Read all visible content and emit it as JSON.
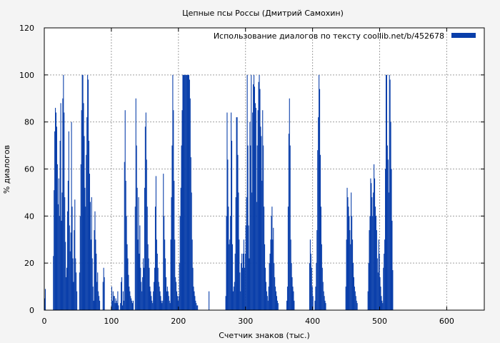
{
  "chart_data": {
    "type": "bar",
    "title": "Цепные псы Россы (Дмитрий Самохин)",
    "xlabel": "Счетчик знаков (тыс.)",
    "ylabel": "% диалогов",
    "xlim": [
      0,
      656
    ],
    "ylim": [
      0,
      120
    ],
    "xticks": [
      "0",
      "100",
      "200",
      "300",
      "400",
      "500",
      "600"
    ],
    "yticks": [
      "0",
      "20",
      "40",
      "60",
      "80",
      "100",
      "120"
    ],
    "grid": true,
    "legend_position": "top-right",
    "series": [
      {
        "name": "Использование диалогов по тексту  coollib.net/b/452678",
        "color": "#0a3faa",
        "x_start": 1,
        "x_step": 1,
        "values": [
          5,
          9,
          0,
          0,
          0,
          0,
          0,
          0,
          0,
          0,
          0,
          0,
          0,
          23,
          51,
          76,
          86,
          84,
          78,
          62,
          45,
          56,
          40,
          72,
          88,
          38,
          50,
          90,
          100,
          84,
          48,
          29,
          14,
          18,
          42,
          55,
          76,
          36,
          25,
          33,
          80,
          44,
          22,
          12,
          34,
          47,
          22,
          16,
          8,
          0,
          0,
          0,
          16,
          40,
          62,
          85,
          100,
          100,
          88,
          74,
          52,
          44,
          66,
          82,
          100,
          98,
          72,
          58,
          46,
          30,
          48,
          22,
          10,
          4,
          34,
          42,
          30,
          24,
          12,
          16,
          8,
          6,
          4,
          0,
          0,
          0,
          0,
          12,
          18,
          14,
          0,
          0,
          0,
          0,
          0,
          0,
          0,
          0,
          0,
          0,
          10,
          4,
          8,
          6,
          6,
          3,
          5,
          4,
          3,
          8,
          2,
          0,
          0,
          3,
          12,
          14,
          2,
          8,
          4,
          63,
          85,
          55,
          40,
          28,
          22,
          15,
          10,
          8,
          6,
          5,
          4,
          3,
          4,
          0,
          0,
          44,
          90,
          70,
          52,
          30,
          48,
          24,
          36,
          18,
          12,
          8,
          14,
          22,
          18,
          52,
          78,
          84,
          64,
          44,
          28,
          22,
          18,
          10,
          8,
          6,
          4,
          3,
          8,
          12,
          18,
          44,
          57,
          30,
          24,
          18,
          12,
          10,
          8,
          6,
          4,
          3,
          4,
          58,
          40,
          30,
          22,
          14,
          8,
          10,
          8,
          6,
          4,
          3,
          30,
          48,
          70,
          100,
          85,
          55,
          30,
          14,
          12,
          8,
          6,
          4,
          6,
          20,
          40,
          52,
          70,
          85,
          100,
          100,
          100,
          100,
          100,
          100,
          100,
          100,
          100,
          100,
          98,
          90,
          65,
          50,
          30,
          18,
          10,
          8,
          6,
          4,
          3,
          2,
          2,
          0,
          0,
          0,
          0,
          0,
          0,
          0,
          0,
          0,
          0,
          0,
          0,
          0,
          0,
          0,
          0,
          8,
          0,
          0,
          0,
          0,
          0,
          0,
          0,
          0,
          0,
          0,
          0,
          0,
          0,
          0,
          0,
          0,
          0,
          0,
          0,
          0,
          0,
          0,
          0,
          0,
          6,
          40,
          84,
          64,
          44,
          28,
          30,
          40,
          84,
          72,
          28,
          8,
          10,
          12,
          24,
          48,
          82,
          82,
          66,
          50,
          30,
          16,
          8,
          20,
          24,
          18,
          24,
          30,
          18,
          24,
          36,
          48,
          100,
          70,
          36,
          22,
          80,
          70,
          100,
          50,
          84,
          96,
          100,
          95,
          88,
          86,
          46,
          70,
          85,
          97,
          100,
          94,
          78,
          74,
          55,
          85,
          70,
          44,
          28,
          18,
          12,
          8,
          6,
          4,
          10,
          20,
          24,
          30,
          40,
          44,
          30,
          35,
          20,
          14,
          10,
          8,
          6,
          4,
          3,
          0,
          0,
          0,
          0,
          0,
          0,
          0,
          0,
          0,
          0,
          0,
          0,
          4,
          10,
          44,
          75,
          90,
          70,
          30,
          20,
          14,
          10,
          8,
          4,
          0,
          0,
          0,
          0,
          0,
          0,
          0,
          0,
          0,
          0,
          0,
          0,
          0,
          0,
          0,
          0,
          0,
          0,
          0,
          0,
          0,
          0,
          20,
          30,
          24,
          18,
          10,
          6,
          0,
          0,
          4,
          10,
          20,
          34,
          68,
          82,
          100,
          94,
          66,
          44,
          28,
          18,
          12,
          8,
          6,
          4,
          3,
          0,
          0,
          0,
          0,
          0,
          0,
          0,
          0,
          0,
          0,
          0,
          0,
          0,
          0,
          0,
          0,
          0,
          0,
          0,
          0,
          0,
          0,
          0,
          0,
          0,
          0,
          0,
          0,
          0,
          10,
          30,
          52,
          48,
          44,
          40,
          34,
          28,
          50,
          40,
          30,
          20,
          14,
          10,
          8,
          6,
          4,
          3,
          0,
          0,
          0,
          0,
          0,
          0,
          0,
          0,
          0,
          0,
          0,
          0,
          0,
          0,
          0,
          8,
          20,
          34,
          40,
          56,
          54,
          48,
          40,
          50,
          62,
          56,
          44,
          40,
          34,
          22,
          16,
          30,
          24,
          14,
          10,
          6,
          4,
          3,
          18,
          24,
          30,
          60,
          100,
          100,
          70,
          64,
          50,
          100,
          98,
          80,
          60,
          38,
          17
        ]
      }
    ]
  }
}
